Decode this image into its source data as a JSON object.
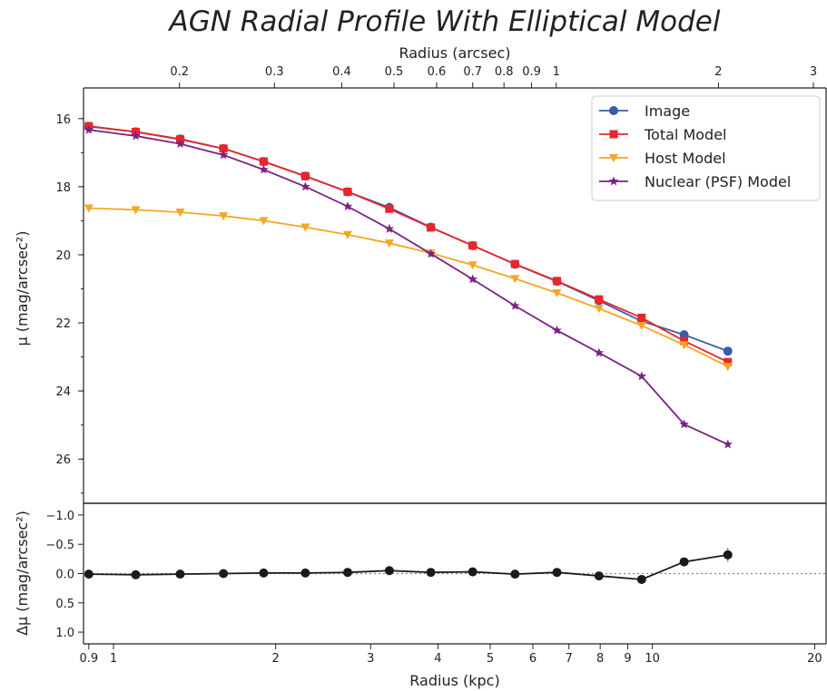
{
  "chart_data": [
    {
      "type": "line",
      "title": "AGN Radial Profile With Elliptical Model",
      "xlabel": "Radius (kpc)",
      "x2label": "Radius (arcsec)",
      "ylabel": "μ (mag/arcsec²)",
      "xscale": "log",
      "xlim": [
        0.88,
        21
      ],
      "ylim": [
        27.3,
        15.1
      ],
      "y_inverted": true,
      "x_ticks": [
        "0.9",
        "1",
        "2",
        "3",
        "4",
        "5",
        "6",
        "7",
        "8",
        "9",
        "10",
        "20"
      ],
      "x_top_ticks": [
        "0.2",
        "0.3",
        "0.4",
        "0.5",
        "0.6",
        "0.7",
        "0.8",
        "0.9",
        "1",
        "2",
        "3"
      ],
      "y_ticks": [
        "16",
        "18",
        "20",
        "22",
        "24",
        "26"
      ],
      "legend_position": "top-right",
      "grid": false,
      "x": [
        0.9,
        1.1,
        1.33,
        1.6,
        1.9,
        2.27,
        2.72,
        3.25,
        3.88,
        4.64,
        5.56,
        6.65,
        7.96,
        9.55,
        11.45,
        13.8
      ],
      "series": [
        {
          "name": "Image",
          "color": "#3a5ba8",
          "marker": "circle",
          "values": [
            16.23,
            16.39,
            16.6,
            16.88,
            17.26,
            17.69,
            18.15,
            18.61,
            19.19,
            19.73,
            20.28,
            20.78,
            21.35,
            21.95,
            22.35,
            22.83
          ]
        },
        {
          "name": "Total Model",
          "color": "#e8262c",
          "marker": "square",
          "values": [
            16.22,
            16.39,
            16.61,
            16.88,
            17.26,
            17.69,
            18.15,
            18.65,
            19.2,
            19.73,
            20.27,
            20.77,
            21.31,
            21.85,
            22.53,
            23.15
          ]
        },
        {
          "name": "Host Model",
          "color": "#f5a623",
          "marker": "triangle-down",
          "values": [
            18.63,
            18.68,
            18.75,
            18.86,
            19.0,
            19.19,
            19.41,
            19.66,
            19.95,
            20.3,
            20.7,
            21.12,
            21.58,
            22.08,
            22.65,
            23.28
          ]
        },
        {
          "name": "Nuclear (PSF) Model",
          "color": "#7b2382",
          "marker": "star",
          "values": [
            16.33,
            16.51,
            16.74,
            17.07,
            17.5,
            18.0,
            18.58,
            19.24,
            19.97,
            20.72,
            21.5,
            22.22,
            22.88,
            23.57,
            24.98,
            25.57
          ]
        }
      ]
    },
    {
      "type": "line",
      "xlabel": "Radius (kpc)",
      "ylabel": "Δμ (mag/arcsec²)",
      "xscale": "log",
      "xlim": [
        0.88,
        21
      ],
      "ylim": [
        1.2,
        -1.2
      ],
      "y_inverted": true,
      "y_ticks": [
        "−1.0",
        "−0.5",
        "0.0",
        "0.5",
        "1.0"
      ],
      "zero_line": true,
      "x": [
        0.9,
        1.1,
        1.33,
        1.6,
        1.9,
        2.27,
        2.72,
        3.25,
        3.88,
        4.64,
        5.56,
        6.65,
        7.96,
        9.55,
        11.45,
        13.8
      ],
      "series": [
        {
          "name": "",
          "color": "#1a1a1a",
          "marker": "circle",
          "values": [
            0.01,
            0.02,
            0.01,
            0.0,
            -0.01,
            -0.01,
            -0.02,
            -0.05,
            -0.02,
            -0.03,
            0.01,
            -0.02,
            0.04,
            0.1,
            -0.2,
            -0.32
          ],
          "errors": [
            0.02,
            0.02,
            0.02,
            0.02,
            0.02,
            0.02,
            0.02,
            0.02,
            0.02,
            0.03,
            0.03,
            0.03,
            0.04,
            0.05,
            0.07,
            0.12
          ]
        }
      ]
    }
  ]
}
